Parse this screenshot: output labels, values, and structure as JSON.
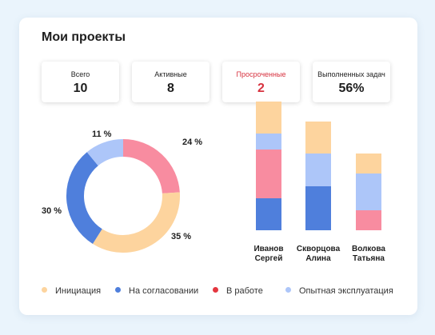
{
  "title": "Мои проекты",
  "stats": [
    {
      "label": "Всего",
      "value": "10"
    },
    {
      "label": "Активные",
      "value": "8"
    },
    {
      "label": "Просроченные",
      "value": "2",
      "accent": "#d7323f"
    },
    {
      "label": "Выполненных задач",
      "value": "56%"
    }
  ],
  "colors": {
    "initiation": "#fdd49e",
    "approval": "#4f7fdc",
    "in_work": "#f88ca0",
    "trial": "#adc6f9"
  },
  "donut": {
    "segments": [
      {
        "key": "in_work",
        "value": 24,
        "label": "24 %"
      },
      {
        "key": "initiation",
        "value": 35,
        "label": "35 %"
      },
      {
        "key": "approval",
        "value": 30,
        "label": "30 %"
      },
      {
        "key": "trial",
        "value": 11,
        "label": "11 %"
      }
    ]
  },
  "bars": {
    "columns": [
      {
        "name_line1": "Иванов",
        "name_line2": "Сергей",
        "segments": [
          {
            "key": "initiation",
            "value": 4
          },
          {
            "key": "trial",
            "value": 2
          },
          {
            "key": "in_work",
            "value": 6
          },
          {
            "key": "approval",
            "value": 4
          }
        ]
      },
      {
        "name_line1": "Скворцова",
        "name_line2": "Алина",
        "segments": [
          {
            "key": "initiation",
            "value": 4
          },
          {
            "key": "trial",
            "value": 4
          },
          {
            "key": "approval",
            "value": 5.5
          }
        ]
      },
      {
        "name_line1": "Волкова",
        "name_line2": "Татьяна",
        "segments": [
          {
            "key": "initiation",
            "value": 2.5
          },
          {
            "key": "trial",
            "value": 4.5
          },
          {
            "key": "in_work",
            "value": 2.5
          }
        ]
      }
    ],
    "max": 12.5
  },
  "legend": [
    {
      "key": "initiation",
      "label": "Инициация"
    },
    {
      "key": "approval",
      "label": "На согласовании"
    },
    {
      "key": "in_work",
      "label": "В работе",
      "dot": "#e4363f"
    },
    {
      "key": "trial",
      "label": "Опытная эксплуатация"
    }
  ]
}
